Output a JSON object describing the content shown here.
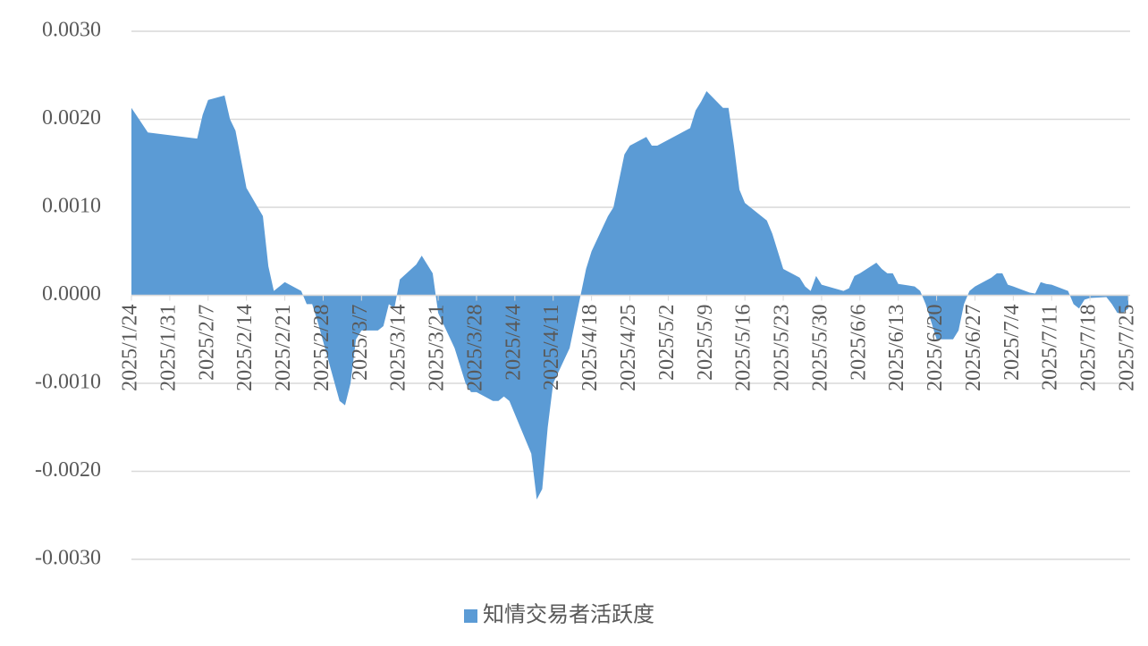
{
  "chart_data": {
    "type": "area",
    "series": [
      {
        "name": "知情交易者活跃度",
        "color": "#5b9bd5",
        "x": [
          "2025/1/24",
          "2025/1/27",
          "2025/2/5",
          "2025/2/6",
          "2025/2/7",
          "2025/2/10",
          "2025/2/11",
          "2025/2/12",
          "2025/2/14",
          "2025/2/17",
          "2025/2/18",
          "2025/2/19",
          "2025/2/21",
          "2025/2/24",
          "2025/2/25",
          "2025/2/26",
          "2025/2/27",
          "2025/3/3",
          "2025/3/4",
          "2025/3/5",
          "2025/3/6",
          "2025/3/7",
          "2025/3/10",
          "2025/3/11",
          "2025/3/12",
          "2025/3/13",
          "2025/3/14",
          "2025/3/17",
          "2025/3/18",
          "2025/3/19",
          "2025/3/20",
          "2025/3/21",
          "2025/3/24",
          "2025/3/25",
          "2025/3/26",
          "2025/3/27",
          "2025/3/28",
          "2025/3/31",
          "2025/4/1",
          "2025/4/2",
          "2025/4/3",
          "2025/4/7",
          "2025/4/8",
          "2025/4/9",
          "2025/4/10",
          "2025/4/11",
          "2025/4/14",
          "2025/4/15",
          "2025/4/16",
          "2025/4/17",
          "2025/4/18",
          "2025/4/21",
          "2025/4/22",
          "2025/4/23",
          "2025/4/24",
          "2025/4/25",
          "2025/4/28",
          "2025/4/29",
          "2025/4/30",
          "2025/5/6",
          "2025/5/7",
          "2025/5/8",
          "2025/5/9",
          "2025/5/12",
          "2025/5/13",
          "2025/5/14",
          "2025/5/15",
          "2025/5/16",
          "2025/5/19",
          "2025/5/20",
          "2025/5/21",
          "2025/5/22",
          "2025/5/23",
          "2025/5/26",
          "2025/5/27",
          "2025/5/28",
          "2025/5/29",
          "2025/5/30",
          "2025/6/3",
          "2025/6/4",
          "2025/6/5",
          "2025/6/6",
          "2025/6/9",
          "2025/6/10",
          "2025/6/11",
          "2025/6/12",
          "2025/6/13",
          "2025/6/16",
          "2025/6/17",
          "2025/6/18",
          "2025/6/19",
          "2025/6/20",
          "2025/6/23",
          "2025/6/24",
          "2025/6/25",
          "2025/6/26",
          "2025/6/27",
          "2025/6/30",
          "2025/7/1",
          "2025/7/2",
          "2025/7/3",
          "2025/7/4",
          "2025/7/7",
          "2025/7/8",
          "2025/7/9",
          "2025/7/10",
          "2025/7/11",
          "2025/7/14",
          "2025/7/15",
          "2025/7/16",
          "2025/7/17",
          "2025/7/18",
          "2025/7/21",
          "2025/7/22",
          "2025/7/23",
          "2025/7/24",
          "2025/7/25"
        ],
        "values": [
          0.00213,
          0.00185,
          0.00178,
          0.00205,
          0.00222,
          0.00227,
          0.002,
          0.00187,
          0.00122,
          0.0009,
          0.00033,
          5e-05,
          0.00015,
          5e-05,
          -0.0001,
          -0.0001,
          -0.0003,
          -0.0012,
          -0.00125,
          -0.001,
          -0.0005,
          -0.0004,
          -0.0004,
          -0.00035,
          -0.0001,
          -0.00015,
          0.00018,
          0.00035,
          0.00045,
          0.00035,
          0.00025,
          -0.0002,
          -0.0006,
          -0.0008,
          -0.001,
          -0.0011,
          -0.0011,
          -0.0012,
          -0.0012,
          -0.00115,
          -0.0012,
          -0.0018,
          -0.00232,
          -0.0022,
          -0.0015,
          -0.001,
          -0.0006,
          -0.0003,
          0.0,
          0.0003,
          0.0005,
          0.0009,
          0.001,
          0.0013,
          0.0016,
          0.0017,
          0.0018,
          0.0017,
          0.0017,
          0.0019,
          0.0021,
          0.0022,
          0.00232,
          0.00213,
          0.00213,
          0.0017,
          0.0012,
          0.00105,
          0.0009,
          0.00085,
          0.0007,
          0.0005,
          0.0003,
          0.0002,
          0.0001,
          5e-05,
          0.00022,
          0.00012,
          5e-05,
          8e-05,
          0.00022,
          0.00025,
          0.00037,
          0.0003,
          0.00025,
          0.00025,
          0.00013,
          0.0001,
          5e-05,
          -0.0001,
          -0.0003,
          -0.0005,
          -0.0005,
          -0.0004,
          -0.0001,
          5e-05,
          0.0001,
          0.0002,
          0.00025,
          0.00025,
          0.00012,
          0.0001,
          3e-05,
          2e-05,
          0.00015,
          0.00013,
          0.00012,
          5e-05,
          -0.0001,
          -0.00015,
          -5e-05,
          -3e-05,
          -2e-05,
          -0.0001,
          -0.0002,
          -0.0002,
          -0.00015
        ]
      }
    ],
    "xlim": [
      "2025/1/24",
      "2025/7/25"
    ],
    "xticks": [
      "2025/1/24",
      "2025/1/31",
      "2025/2/7",
      "2025/2/14",
      "2025/2/21",
      "2025/2/28",
      "2025/3/7",
      "2025/3/14",
      "2025/3/21",
      "2025/3/28",
      "2025/4/4",
      "2025/4/11",
      "2025/4/18",
      "2025/4/25",
      "2025/5/2",
      "2025/5/9",
      "2025/5/16",
      "2025/5/23",
      "2025/5/30",
      "2025/6/6",
      "2025/6/13",
      "2025/6/20",
      "2025/6/27",
      "2025/7/4",
      "2025/7/11",
      "2025/7/18",
      "2025/7/25"
    ],
    "ylim": [
      -0.003,
      0.003
    ],
    "yticks": [
      {
        "value": -0.003,
        "label": "-0.0030"
      },
      {
        "value": -0.002,
        "label": "-0.0020"
      },
      {
        "value": -0.001,
        "label": "-0.0010"
      },
      {
        "value": 0,
        "label": "0.0000"
      },
      {
        "value": 0.001,
        "label": "0.0010"
      },
      {
        "value": 0.002,
        "label": "0.0020"
      },
      {
        "value": 0.003,
        "label": "0.0030"
      }
    ],
    "grid": true,
    "legend": "bottom"
  }
}
